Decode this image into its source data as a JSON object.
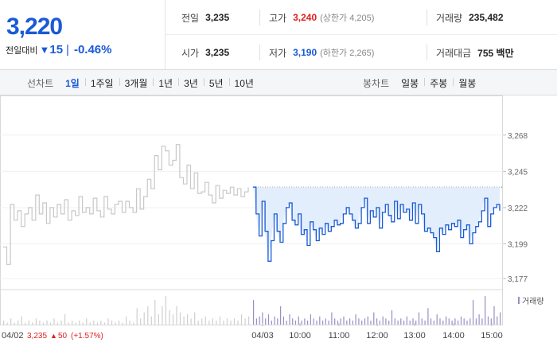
{
  "quote": {
    "price": "3,220",
    "change_label": "전일대비",
    "change_arrow": "▼",
    "change_value": "15",
    "change_sep": "|",
    "change_pct": "-0.46%"
  },
  "stats": {
    "prev_close_label": "전일",
    "prev_close": "3,235",
    "high_label": "고가",
    "high": "3,240",
    "upper_limit": "(상한가 4,205)",
    "volume_label": "거래량",
    "volume": "235,482",
    "open_label": "시가",
    "open": "3,235",
    "low_label": "저가",
    "low": "3,190",
    "lower_limit": "(하한가 2,265)",
    "trade_value_label": "거래대금",
    "trade_value": "755 백만"
  },
  "tabs": {
    "line_title": "선차트",
    "line_tabs": [
      "1일",
      "1주일",
      "3개월",
      "1년",
      "3년",
      "5년",
      "10년"
    ],
    "candle_title": "봉차트",
    "candle_tabs": [
      "일봉",
      "주봉",
      "월봉"
    ]
  },
  "colors": {
    "accent_blue": "#1a5ad6",
    "up_red": "#e02020",
    "prev_day_gray": "#c8c8c8",
    "fill_blue": "#e3eefc",
    "volume_purple": "#9b8ec4"
  },
  "chart_data": {
    "type": "line",
    "legend": "거래량",
    "legend_position": "top-right",
    "y_ticks": [
      3268,
      3245,
      3222,
      3199,
      3177
    ],
    "ylim": [
      3172,
      3278
    ],
    "reference_value": 3235,
    "x_ticks": [
      "04/03",
      "10:00",
      "11:00",
      "12:00",
      "13:00",
      "14:00",
      "15:00"
    ],
    "prev_day_label": "04/02",
    "prev_day_close": "3,235",
    "prev_day_change_arrow": "▲",
    "prev_day_change": "50",
    "prev_day_change_pct": "(+1.57%)",
    "series": [
      {
        "date": "04/02",
        "values": [
          3197,
          3186,
          3224,
          3214,
          3220,
          3210,
          3218,
          3222,
          3214,
          3230,
          3218,
          3225,
          3212,
          3222,
          3216,
          3224,
          3218,
          3227,
          3214,
          3220,
          3217,
          3229,
          3219,
          3222,
          3218,
          3228,
          3220,
          3216,
          3229,
          3221,
          3218,
          3224,
          3226,
          3219,
          3226,
          3222,
          3219,
          3234,
          3221,
          3229,
          3240,
          3234,
          3255,
          3246,
          3261,
          3258,
          3249,
          3252,
          3262,
          3241,
          3237,
          3249,
          3234,
          3244,
          3231,
          3232,
          3238,
          3230,
          3225,
          3236,
          3228,
          3233,
          3231,
          3235,
          3230,
          3234,
          3229,
          3232,
          3235
        ],
        "volume": [
          2,
          1,
          3,
          1,
          2,
          4,
          1,
          2,
          1,
          3,
          2,
          1,
          2,
          1,
          3,
          1,
          2,
          5,
          1,
          2,
          1,
          2,
          1,
          3,
          1,
          2,
          1,
          2,
          1,
          3,
          2,
          1,
          2,
          1,
          4,
          2,
          1,
          8,
          3,
          6,
          9,
          4,
          12,
          5,
          9,
          14,
          7,
          5,
          9,
          6,
          4,
          5,
          3,
          6,
          2,
          3,
          4,
          2,
          3,
          2,
          4,
          2,
          3,
          2,
          3,
          2,
          5,
          3,
          4
        ]
      },
      {
        "date": "04/03",
        "values": [
          3235,
          3218,
          3204,
          3226,
          3207,
          3188,
          3201,
          3218,
          3207,
          3200,
          3212,
          3222,
          3225,
          3214,
          3211,
          3218,
          3205,
          3208,
          3198,
          3213,
          3208,
          3201,
          3209,
          3205,
          3212,
          3207,
          3210,
          3214,
          3211,
          3212,
          3218,
          3222,
          3218,
          3214,
          3209,
          3212,
          3222,
          3228,
          3212,
          3220,
          3216,
          3222,
          3209,
          3219,
          3224,
          3217,
          3213,
          3226,
          3215,
          3224,
          3219,
          3221,
          3214,
          3225,
          3212,
          3224,
          3218,
          3207,
          3209,
          3206,
          3203,
          3194,
          3209,
          3205,
          3211,
          3208,
          3212,
          3210,
          3214,
          3203,
          3208,
          3211,
          3199,
          3206,
          3210,
          3213,
          3220,
          3228,
          3210,
          3218,
          3222,
          3224,
          3220
        ],
        "volume": [
          12,
          3,
          4,
          6,
          3,
          5,
          2,
          4,
          3,
          9,
          4,
          2,
          5,
          3,
          2,
          4,
          2,
          3,
          2,
          5,
          3,
          2,
          4,
          2,
          3,
          2,
          6,
          3,
          2,
          3,
          4,
          2,
          3,
          2,
          5,
          3,
          2,
          3,
          4,
          2,
          6,
          3,
          2,
          4,
          3,
          2,
          7,
          3,
          2,
          3,
          2,
          4,
          2,
          3,
          2,
          6,
          3,
          2,
          8,
          3,
          2,
          5,
          3,
          2,
          4,
          3,
          2,
          3,
          2,
          4,
          3,
          2,
          3,
          12,
          3,
          5,
          3,
          14,
          4,
          3,
          9,
          4,
          6
        ]
      }
    ]
  }
}
